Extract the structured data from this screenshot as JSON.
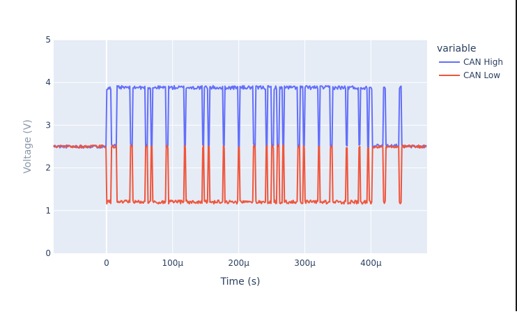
{
  "chart_data": {
    "type": "line",
    "title": "",
    "xlabel": "Time (s)",
    "ylabel": "Voltage (V)",
    "xlim": [
      -8e-05,
      0.000485
    ],
    "ylim": [
      0,
      5
    ],
    "xticks": [
      {
        "value": 0,
        "label": "0"
      },
      {
        "value": 0.0001,
        "label": "100μ"
      },
      {
        "value": 0.0002,
        "label": "200μ"
      },
      {
        "value": 0.0003,
        "label": "300μ"
      },
      {
        "value": 0.0004,
        "label": "400μ"
      }
    ],
    "yticks": [
      {
        "value": 0,
        "label": "0"
      },
      {
        "value": 1,
        "label": "1"
      },
      {
        "value": 2,
        "label": "2"
      },
      {
        "value": 3,
        "label": "3"
      },
      {
        "value": 4,
        "label": "4"
      },
      {
        "value": 5,
        "label": "5"
      }
    ],
    "grid": true,
    "legend": {
      "title": "variable",
      "position": "right"
    },
    "recessive_level": 2.5,
    "dominant_intervals": [
      [
        0.0,
        7e-06
      ],
      [
        1.6e-05,
        3.6e-05
      ],
      [
        3.9e-05,
        5.9e-05
      ],
      [
        6.2e-05,
        6.7e-05
      ],
      [
        7e-05,
        9e-05
      ],
      [
        9.3e-05,
        0.000117
      ],
      [
        0.00012,
        0.000145
      ],
      [
        0.000148,
        0.000153
      ],
      [
        0.000156,
        0.000176
      ],
      [
        0.000179,
        0.000199
      ],
      [
        0.000202,
        0.000222
      ],
      [
        0.000225,
        0.000241
      ],
      [
        0.000244,
        0.000249
      ],
      [
        0.000253,
        0.000258
      ],
      [
        0.000261,
        0.000266
      ],
      [
        0.000269,
        0.000289
      ],
      [
        0.000292,
        0.000297
      ],
      [
        0.0003,
        0.00032
      ],
      [
        0.000323,
        0.000338
      ],
      [
        0.000342,
        0.000362
      ],
      [
        0.000365,
        0.000381
      ],
      [
        0.000384,
        0.000394
      ],
      [
        0.000397,
        0.000402
      ],
      [
        0.000418,
        0.000422
      ],
      [
        0.000442,
        0.000446
      ]
    ],
    "series": [
      {
        "name": "CAN High",
        "color": "#636efa",
        "recessive": 2.52,
        "dominant": 3.88
      },
      {
        "name": "CAN Low",
        "color": "#ef553b",
        "recessive": 2.5,
        "dominant": 1.2
      }
    ]
  }
}
